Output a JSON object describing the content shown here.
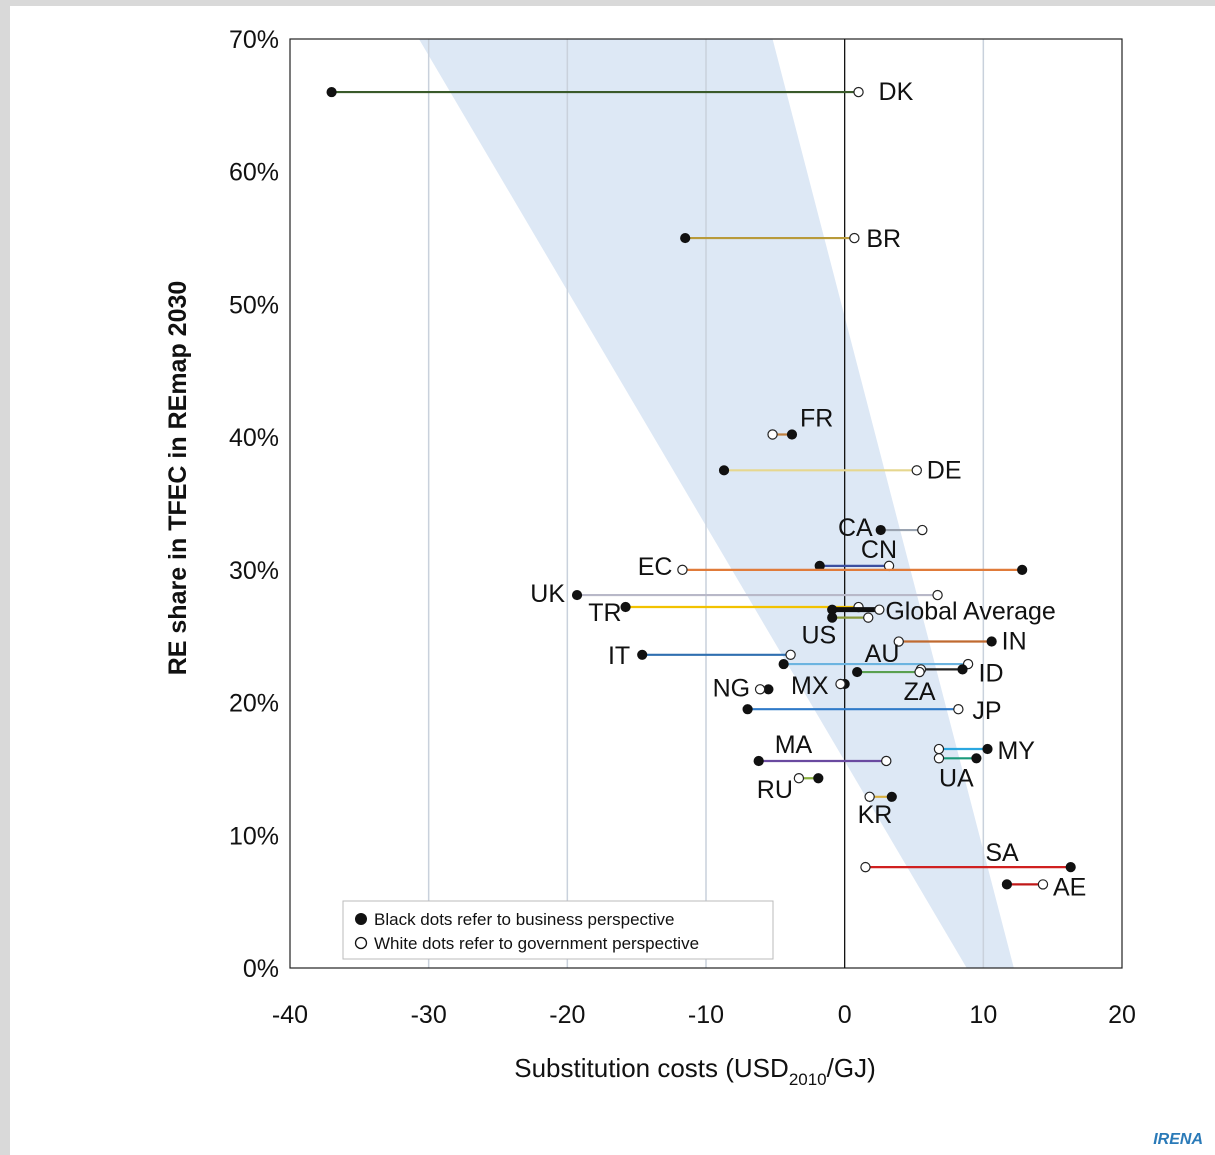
{
  "chart_data": {
    "type": "scatter",
    "ylabel": "RE share in TFEC in REmap 2030",
    "xlabel_main": "Substitution costs (USD",
    "xlabel_sub": "2010",
    "xlabel_tail": "/GJ)",
    "xlim": [
      -40,
      20
    ],
    "ylim": [
      0,
      70
    ],
    "x_ticks": [
      "-40",
      "-30",
      "-20",
      "-10",
      "0",
      "10",
      "20"
    ],
    "y_ticks": [
      "0%",
      "10%",
      "20%",
      "30%",
      "40%",
      "50%",
      "60%",
      "70%"
    ],
    "grid": "vertical",
    "shaded_band_note": "light-blue wedge",
    "legend": {
      "placement": "bottom-left",
      "items": [
        "Black dots refer to business perspective",
        "White dots refer to government perspective"
      ]
    },
    "series": [
      {
        "label": "DK",
        "business": -37,
        "government": 1,
        "y": 66,
        "color": "#3a5a2a"
      },
      {
        "label": "BR",
        "business": -11.5,
        "government": 0.7,
        "y": 55,
        "color": "#b89a3a"
      },
      {
        "label": "FR",
        "business": -3.8,
        "government": -5.2,
        "y": 40.2,
        "color": "#c08040"
      },
      {
        "label": "DE",
        "business": -8.7,
        "government": 5.2,
        "y": 37.5,
        "color": "#e6d78f"
      },
      {
        "label": "CA",
        "business": 2.6,
        "government": 5.6,
        "y": 33,
        "color": "#9aa3b0"
      },
      {
        "label": "CN",
        "business": -1.8,
        "government": 3.2,
        "y": 30.3,
        "color": "#3c4fa0"
      },
      {
        "label": "EC",
        "business": 12.8,
        "government": -11.7,
        "y": 30,
        "color": "#e07b3a"
      },
      {
        "label": "UK",
        "business": -19.3,
        "government": 6.7,
        "y": 28.1,
        "color": "#b8b8c8"
      },
      {
        "label": "TR",
        "business": -15.8,
        "government": 1,
        "y": 27.2,
        "color": "#f2c200"
      },
      {
        "label": "Global Average",
        "business": -0.9,
        "government": 2.5,
        "y": 27,
        "color": "#111111"
      },
      {
        "label": "US",
        "business": -0.9,
        "government": 1.7,
        "y": 26.4,
        "color": "#8a9a3a"
      },
      {
        "label": "IN",
        "business": 10.6,
        "government": 3.9,
        "y": 24.6,
        "color": "#c06a30"
      },
      {
        "label": "IT",
        "business": -14.6,
        "government": -3.9,
        "y": 23.6,
        "color": "#2f6fb0"
      },
      {
        "label": "AU",
        "business": -4.4,
        "government": 8.9,
        "y": 22.9,
        "color": "#6cb4e0"
      },
      {
        "label": "ID",
        "business": 8.5,
        "government": 5.5,
        "y": 22.5,
        "color": "#222222"
      },
      {
        "label": "ZA",
        "business": 0.9,
        "government": 5.4,
        "y": 22.3,
        "color": "#5aa050"
      },
      {
        "label": "MX",
        "business": 0,
        "government": -0.3,
        "y": 21.4,
        "color": "#666666"
      },
      {
        "label": "NG",
        "business": -5.5,
        "government": -6.1,
        "y": 21,
        "color": "#444444"
      },
      {
        "label": "JP",
        "business": -7,
        "government": 8.2,
        "y": 19.5,
        "color": "#2f7ac8"
      },
      {
        "label": "MY",
        "business": 10.3,
        "government": 6.8,
        "y": 16.5,
        "color": "#2aa7e0"
      },
      {
        "label": "UA",
        "business": 9.5,
        "government": 6.8,
        "y": 15.8,
        "color": "#1a9a7a"
      },
      {
        "label": "MA",
        "business": -6.2,
        "government": 3,
        "y": 15.6,
        "color": "#6a4aa0"
      },
      {
        "label": "RU",
        "business": -1.9,
        "government": -3.3,
        "y": 14.3,
        "color": "#8ab040"
      },
      {
        "label": "KR",
        "business": 3.4,
        "government": 1.8,
        "y": 12.9,
        "color": "#d8b040"
      },
      {
        "label": "SA",
        "business": 16.3,
        "government": 1.5,
        "y": 7.6,
        "color": "#d02020"
      },
      {
        "label": "AE",
        "business": 11.7,
        "government": 14.3,
        "y": 6.3,
        "color": "#c01818"
      }
    ]
  },
  "watermark": "IRENA"
}
